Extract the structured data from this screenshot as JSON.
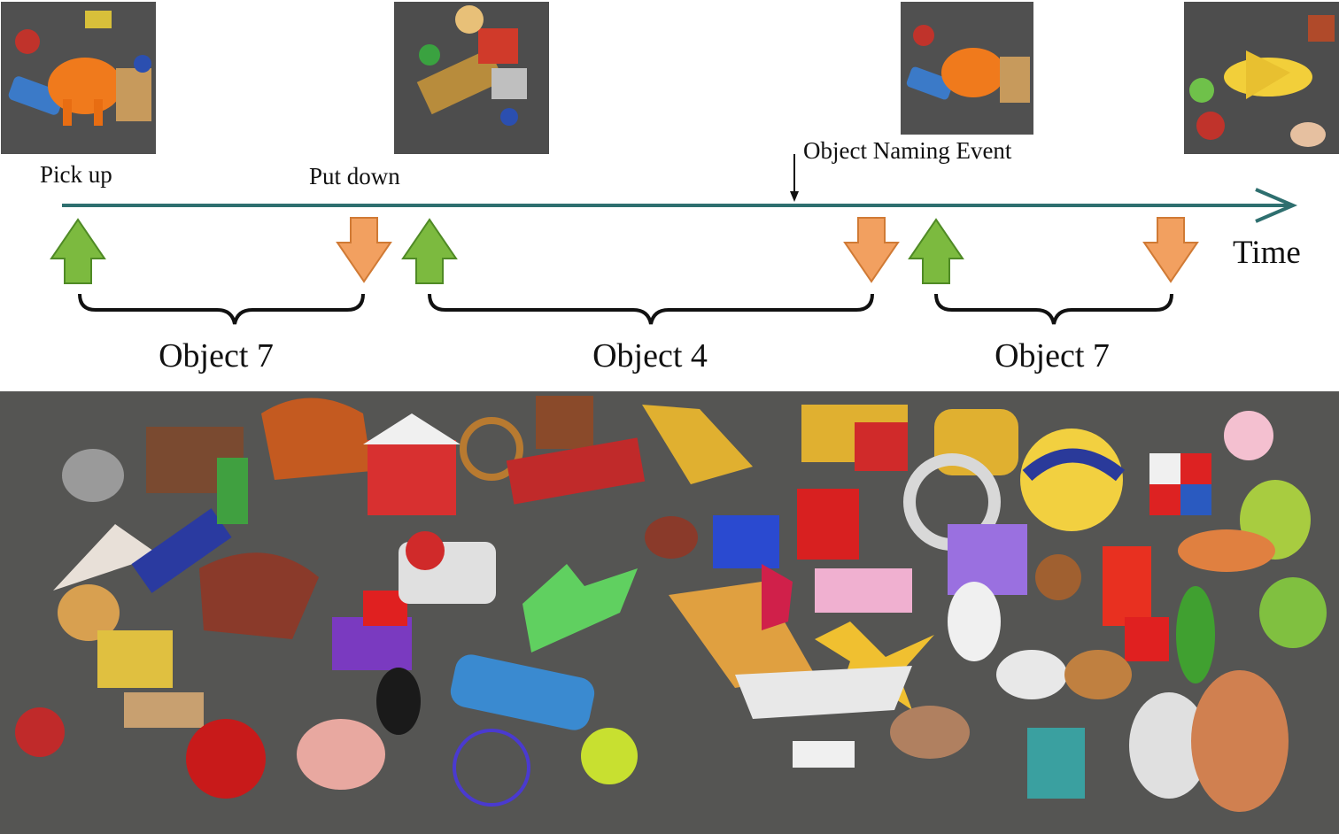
{
  "labels": {
    "pick_up": "Pick up",
    "put_down": "Put down",
    "naming_event": "Object Naming Event",
    "time": "Time"
  },
  "segments": [
    {
      "label": "Object 7"
    },
    {
      "label": "Object 4"
    },
    {
      "label": "Object 7"
    }
  ],
  "colors": {
    "timeline": "#2e6f6f",
    "pick_up_arrow": "#7cba3f",
    "put_down_arrow": "#f2a060",
    "brace": "#111111"
  },
  "icons": {
    "pick_up": "up-arrow-icon",
    "put_down": "down-arrow-icon"
  }
}
